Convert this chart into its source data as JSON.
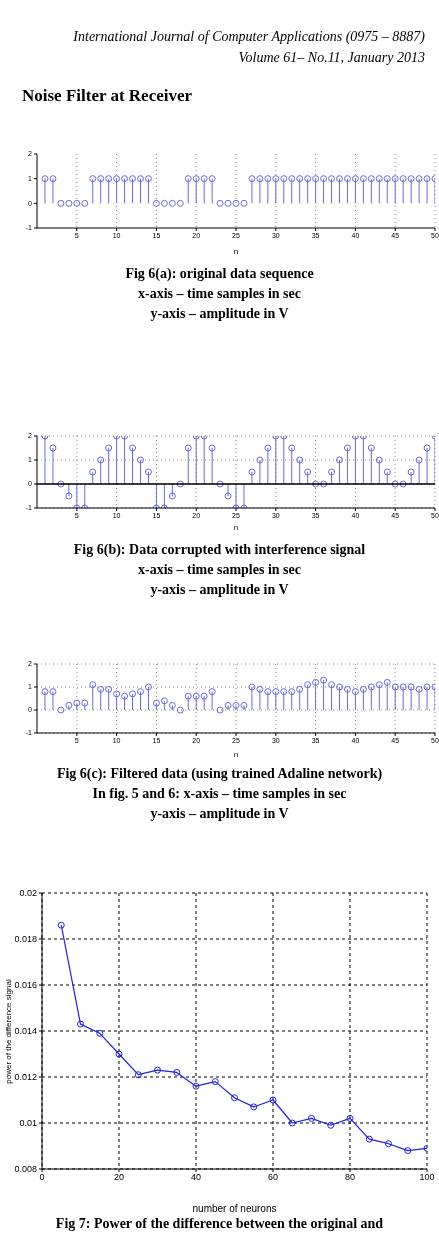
{
  "chart_data": [
    {
      "type": "other",
      "title": "Noise Filter at Receiver",
      "annotations": [
        "International Journal of Computer Applications (0975 – 8887)",
        "Volume 61– No.11, January 2013"
      ]
    },
    {
      "type": "lollipop",
      "xlabel": "n",
      "x": [
        1,
        2,
        3,
        4,
        5,
        6,
        7,
        8,
        9,
        10,
        11,
        12,
        13,
        14,
        15,
        16,
        17,
        18,
        19,
        20,
        21,
        22,
        23,
        24,
        25,
        26,
        27,
        28,
        29,
        30,
        31,
        32,
        33,
        34,
        35,
        36,
        37,
        38,
        39,
        40,
        41,
        42,
        43,
        44,
        45,
        46,
        47,
        48,
        49,
        50
      ],
      "values": [
        1,
        1,
        0,
        0,
        0,
        0,
        1,
        1,
        1,
        1,
        1,
        1,
        1,
        1,
        0,
        0,
        0,
        0,
        1,
        1,
        1,
        1,
        0,
        0,
        0,
        0,
        1,
        1,
        1,
        1,
        1,
        1,
        1,
        1,
        1,
        1,
        1,
        1,
        1,
        1,
        1,
        1,
        1,
        1,
        1,
        1,
        1,
        1,
        1,
        1
      ],
      "color": "#6a6ae0",
      "marker": "circle",
      "xlim": [
        0,
        50
      ],
      "xticks": [
        5,
        10,
        15,
        20,
        25,
        30,
        35,
        40,
        45,
        50
      ],
      "ylim": [
        -1,
        2
      ],
      "yticks": [
        -1,
        0,
        1,
        2
      ],
      "grid": "x",
      "annotations": [
        "Fig 6(a): original data sequence",
        "x-axis – time samples in sec",
        "y-axis – amplitude in V"
      ]
    },
    {
      "type": "lollipop",
      "xlabel": "n",
      "x": [
        1,
        2,
        3,
        4,
        5,
        6,
        7,
        8,
        9,
        10,
        11,
        12,
        13,
        14,
        15,
        16,
        17,
        18,
        19,
        20,
        21,
        22,
        23,
        24,
        25,
        26,
        27,
        28,
        29,
        30,
        31,
        32,
        33,
        34,
        35,
        36,
        37,
        38,
        39,
        40,
        41,
        42,
        43,
        44,
        45,
        46,
        47,
        48,
        49,
        50
      ],
      "values": [
        2,
        1.5,
        0,
        -0.5,
        -1,
        -1,
        0.5,
        1,
        1.5,
        2,
        2,
        1.5,
        1,
        0.5,
        -1,
        -1,
        -0.5,
        0,
        1.5,
        2,
        2,
        1.5,
        0,
        -0.5,
        -1,
        -1,
        0.5,
        1,
        1.5,
        2,
        2,
        1.5,
        1,
        0.5,
        0,
        0,
        0.5,
        1,
        1.5,
        2,
        2,
        1.5,
        1,
        0.5,
        0,
        0,
        0.5,
        1,
        1.5,
        2
      ],
      "color": "#6a6ae0",
      "marker": "circle",
      "xlim": [
        0,
        50
      ],
      "xticks": [
        5,
        10,
        15,
        20,
        25,
        30,
        35,
        40,
        45,
        50
      ],
      "ylim": [
        -1,
        2
      ],
      "yticks": [
        -1,
        0,
        1,
        2
      ],
      "grid": true,
      "ref_lines": [
        {
          "axis": "y",
          "value": 0,
          "color": "#000000"
        }
      ],
      "annotations": [
        "Fig 6(b): Data corrupted with interference signal",
        "x-axis – time samples in sec",
        "y-axis – amplitude in V"
      ]
    },
    {
      "type": "lollipop",
      "xlabel": "n",
      "x": [
        1,
        2,
        3,
        4,
        5,
        6,
        7,
        8,
        9,
        10,
        11,
        12,
        13,
        14,
        15,
        16,
        17,
        18,
        19,
        20,
        21,
        22,
        23,
        24,
        25,
        26,
        27,
        28,
        29,
        30,
        31,
        32,
        33,
        34,
        35,
        36,
        37,
        38,
        39,
        40,
        41,
        42,
        43,
        44,
        45,
        46,
        47,
        48,
        49,
        50
      ],
      "values": [
        0.8,
        0.8,
        0.0,
        0.2,
        0.3,
        0.3,
        1.1,
        0.9,
        0.9,
        0.7,
        0.6,
        0.7,
        0.8,
        1.0,
        0.3,
        0.4,
        0.2,
        0.0,
        0.6,
        0.6,
        0.6,
        0.8,
        0.0,
        0.2,
        0.2,
        0.2,
        1.0,
        0.9,
        0.8,
        0.8,
        0.8,
        0.8,
        0.9,
        1.1,
        1.2,
        1.3,
        1.1,
        1.0,
        0.9,
        0.8,
        0.9,
        1.0,
        1.1,
        1.2,
        1.0,
        1.0,
        1.0,
        0.9,
        1.0,
        1.0
      ],
      "color": "#6a6ae0",
      "marker": "circle",
      "xlim": [
        0,
        50
      ],
      "xticks": [
        5,
        10,
        15,
        20,
        25,
        30,
        35,
        40,
        45,
        50
      ],
      "ylim": [
        -1,
        2
      ],
      "yticks": [
        -1,
        0,
        1,
        2
      ],
      "grid": true,
      "annotations": [
        "Fig 6(c): Filtered data (using trained Adaline network)",
        "In fig. 5 and 6: x-axis – time samples in sec",
        "y-axis – amplitude in V"
      ]
    },
    {
      "type": "line",
      "xlabel": "number of neurons",
      "ylabel": "power of the difference signal",
      "x": [
        5,
        10,
        15,
        20,
        25,
        30,
        35,
        40,
        45,
        50,
        55,
        60,
        65,
        70,
        75,
        80,
        85,
        90,
        95,
        100
      ],
      "values": [
        0.0186,
        0.0143,
        0.0139,
        0.013,
        0.0121,
        0.0123,
        0.0122,
        0.0116,
        0.0118,
        0.0111,
        0.0107,
        0.011,
        0.01,
        0.0102,
        0.0099,
        0.0102,
        0.0093,
        0.0091,
        0.0088,
        0.0089
      ],
      "color": "#2222dd",
      "marker": "circle",
      "line_style": "solid",
      "xlim": [
        0,
        100
      ],
      "xticks": [
        0,
        20,
        40,
        60,
        80,
        100
      ],
      "ylim": [
        0.008,
        0.02
      ],
      "yticks": [
        0.008,
        0.01,
        0.012,
        0.014,
        0.016,
        0.018,
        0.02
      ],
      "grid": true,
      "annotations": [
        "Fig 7: Power of the difference between the original and"
      ]
    }
  ]
}
